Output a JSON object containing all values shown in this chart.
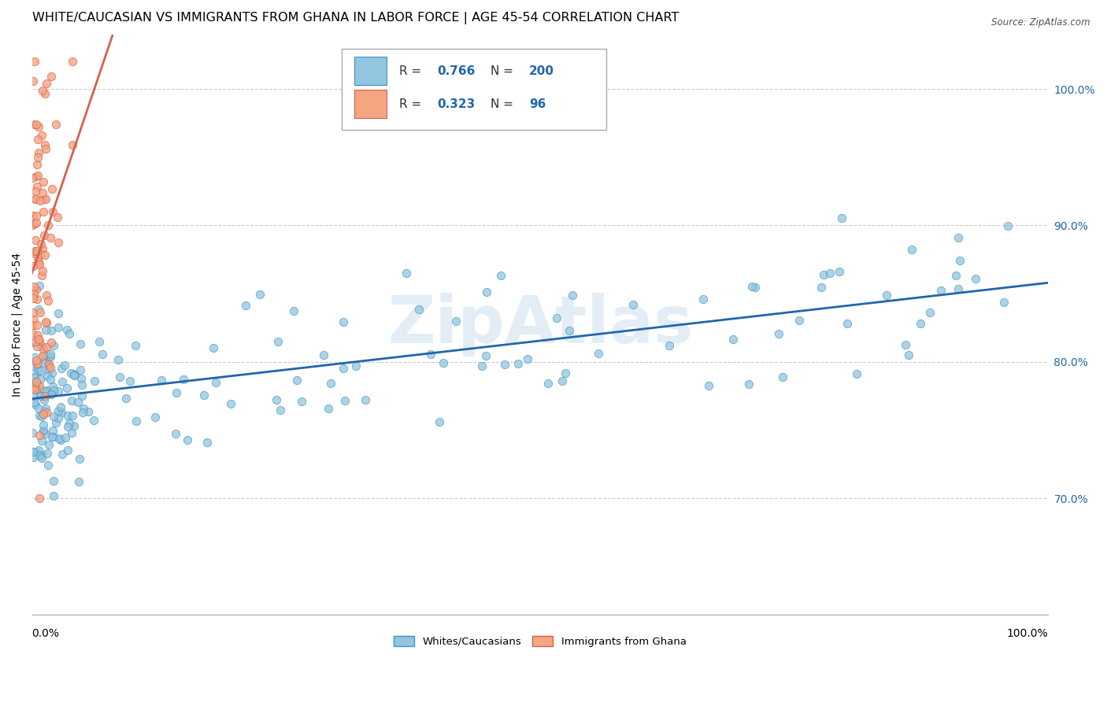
{
  "title": "WHITE/CAUCASIAN VS IMMIGRANTS FROM GHANA IN LABOR FORCE | AGE 45-54 CORRELATION CHART",
  "source": "Source: ZipAtlas.com",
  "ylabel": "In Labor Force | Age 45-54",
  "ytick_values": [
    0.7,
    0.8,
    0.9,
    1.0
  ],
  "xlim": [
    0.0,
    1.0
  ],
  "ylim": [
    0.615,
    1.04
  ],
  "blue_color": "#92c5de",
  "blue_edge_color": "#4393c3",
  "blue_line_color": "#2166ac",
  "pink_color": "#f4a582",
  "pink_edge_color": "#d6604d",
  "pink_line_color": "#d6604d",
  "watermark": "ZipAtlas",
  "watermark_color": "#b0cce4",
  "legend_R_blue": "0.766",
  "legend_N_blue": "200",
  "legend_R_pink": "0.323",
  "legend_N_pink": "96",
  "blue_slope": 0.085,
  "blue_intercept": 0.773,
  "pink_slope": 2.2,
  "pink_intercept": 0.865,
  "grid_color": "#cccccc",
  "tick_color": "#2166ac",
  "title_fontsize": 11.5,
  "axis_label_fontsize": 10,
  "tick_fontsize": 10
}
